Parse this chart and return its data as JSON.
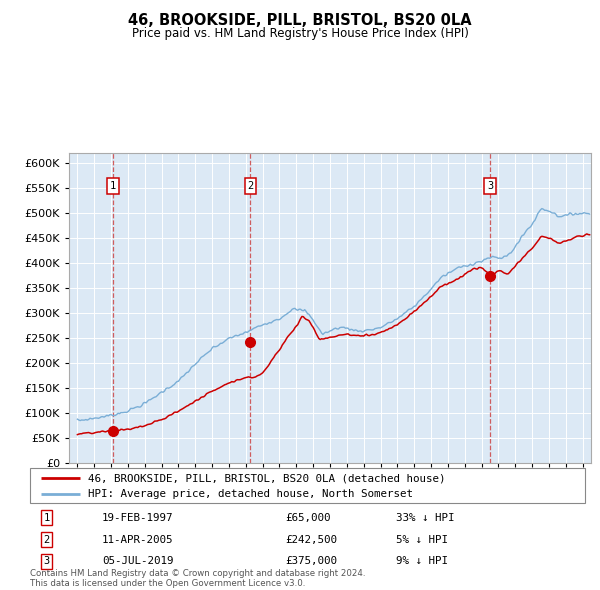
{
  "title": "46, BROOKSIDE, PILL, BRISTOL, BS20 0LA",
  "subtitle": "Price paid vs. HM Land Registry's House Price Index (HPI)",
  "sale_dates_num": [
    1997.12,
    2005.27,
    2019.5
  ],
  "sale_prices": [
    65000,
    242500,
    375000
  ],
  "sale_labels": [
    "1",
    "2",
    "3"
  ],
  "sale_info": [
    {
      "label": "1",
      "date": "19-FEB-1997",
      "price": "£65,000",
      "hpi": "33% ↓ HPI"
    },
    {
      "label": "2",
      "date": "11-APR-2005",
      "price": "£242,500",
      "hpi": "5% ↓ HPI"
    },
    {
      "label": "3",
      "date": "05-JUL-2019",
      "price": "£375,000",
      "hpi": "9% ↓ HPI"
    }
  ],
  "legend_line1": "46, BROOKSIDE, PILL, BRISTOL, BS20 0LA (detached house)",
  "legend_line2": "HPI: Average price, detached house, North Somerset",
  "footer": "Contains HM Land Registry data © Crown copyright and database right 2024.\nThis data is licensed under the Open Government Licence v3.0.",
  "line_color_red": "#cc0000",
  "line_color_blue": "#7aaed6",
  "bg_color": "#dce9f5",
  "grid_color": "#ffffff",
  "ylim": [
    0,
    620000
  ],
  "xlim_start": 1994.5,
  "xlim_end": 2025.5,
  "yticks": [
    0,
    50000,
    100000,
    150000,
    200000,
    250000,
    300000,
    350000,
    400000,
    450000,
    500000,
    550000,
    600000
  ],
  "xticks": [
    1995,
    1996,
    1997,
    1998,
    1999,
    2000,
    2001,
    2002,
    2003,
    2004,
    2005,
    2006,
    2007,
    2008,
    2009,
    2010,
    2011,
    2012,
    2013,
    2014,
    2015,
    2016,
    2017,
    2018,
    2019,
    2020,
    2021,
    2022,
    2023,
    2024,
    2025
  ]
}
